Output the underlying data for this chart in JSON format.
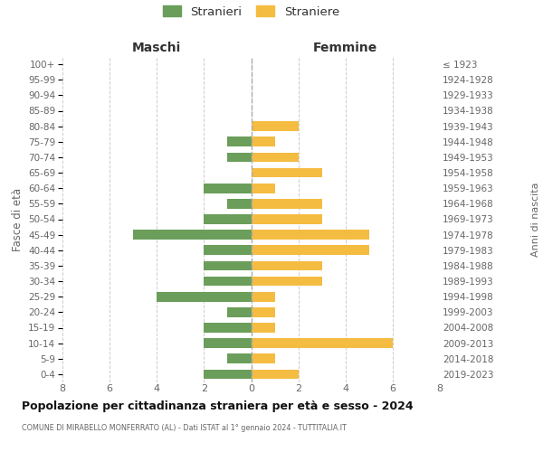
{
  "age_groups": [
    "100+",
    "95-99",
    "90-94",
    "85-89",
    "80-84",
    "75-79",
    "70-74",
    "65-69",
    "60-64",
    "55-59",
    "50-54",
    "45-49",
    "40-44",
    "35-39",
    "30-34",
    "25-29",
    "20-24",
    "15-19",
    "10-14",
    "5-9",
    "0-4"
  ],
  "birth_years": [
    "≤ 1923",
    "1924-1928",
    "1929-1933",
    "1934-1938",
    "1939-1943",
    "1944-1948",
    "1949-1953",
    "1954-1958",
    "1959-1963",
    "1964-1968",
    "1969-1973",
    "1974-1978",
    "1979-1983",
    "1984-1988",
    "1989-1993",
    "1994-1998",
    "1999-2003",
    "2004-2008",
    "2009-2013",
    "2014-2018",
    "2019-2023"
  ],
  "maschi": [
    0,
    0,
    0,
    0,
    0,
    1,
    1,
    0,
    2,
    1,
    2,
    5,
    2,
    2,
    2,
    4,
    1,
    2,
    2,
    1,
    2
  ],
  "femmine": [
    0,
    0,
    0,
    0,
    2,
    1,
    2,
    3,
    1,
    3,
    3,
    5,
    5,
    3,
    3,
    1,
    1,
    1,
    6,
    1,
    2
  ],
  "color_maschi": "#6a9e5a",
  "color_femmine": "#f5bc42",
  "title": "Popolazione per cittadinanza straniera per età e sesso - 2024",
  "subtitle": "COMUNE DI MIRABELLO MONFERRATO (AL) - Dati ISTAT al 1° gennaio 2024 - TUTTITALIA.IT",
  "ylabel_left": "Fasce di età",
  "ylabel_right": "Anni di nascita",
  "label_maschi": "Maschi",
  "label_femmine": "Femmine",
  "legend_maschi": "Stranieri",
  "legend_femmine": "Straniere",
  "xlim": 8,
  "background_color": "#ffffff",
  "grid_color": "#cccccc"
}
